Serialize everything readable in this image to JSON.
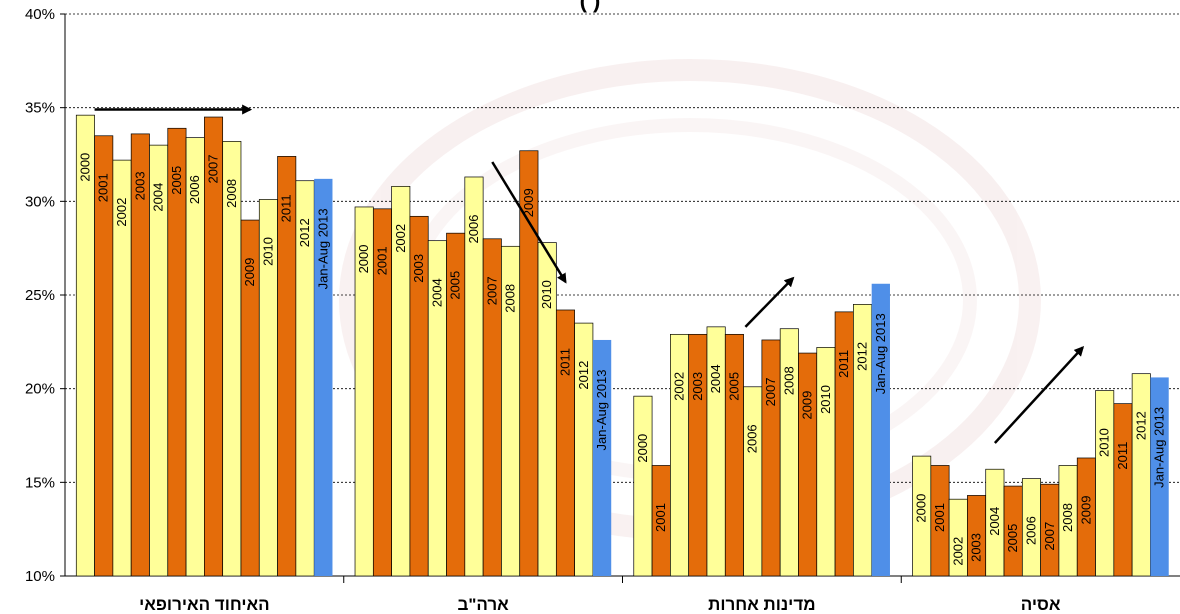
{
  "chart_data": {
    "type": "bar",
    "title": "(                    ‎)",
    "ylim": [
      10,
      40
    ],
    "yticks": [
      "10%",
      "15%",
      "20%",
      "25%",
      "30%",
      "35%",
      "40%"
    ],
    "ytick_values": [
      10,
      15,
      20,
      25,
      30,
      35,
      40
    ],
    "grid": true,
    "categories": [
      "האיחוד האירופאי",
      "ארה\"ב",
      "מדינות אחרות",
      "אסיה"
    ],
    "series_labels": [
      "2000",
      "2001",
      "2002",
      "2003",
      "2004",
      "2005",
      "2006",
      "2007",
      "2008",
      "2009",
      "2010",
      "2011",
      "2012",
      "Jan-Aug 2013"
    ],
    "colors": {
      "even_year": "#ffff99",
      "odd_year": "#e46c0a",
      "partial_year": "#4f8fe8",
      "bar_outline": "#000000",
      "grid": "#000000",
      "arrow": "#000000"
    },
    "values": [
      [
        34.6,
        33.5,
        32.2,
        33.6,
        33.0,
        33.9,
        33.4,
        34.5,
        33.2,
        29.0,
        30.1,
        32.4,
        31.1,
        31.2
      ],
      [
        29.7,
        29.6,
        30.8,
        29.2,
        27.9,
        28.3,
        31.3,
        28.0,
        27.6,
        32.7,
        27.8,
        24.2,
        23.5,
        22.6
      ],
      [
        19.6,
        15.9,
        22.9,
        22.9,
        23.3,
        22.9,
        20.1,
        22.6,
        23.2,
        21.9,
        22.2,
        24.1,
        24.5,
        25.6
      ],
      [
        16.4,
        15.9,
        14.1,
        14.3,
        15.7,
        14.8,
        15.2,
        14.9,
        15.9,
        16.3,
        19.9,
        19.2,
        20.8,
        20.6
      ]
    ],
    "trend_arrows": [
      {
        "group": 0,
        "from": [
          34.9,
          1
        ],
        "to": [
          34.9,
          9.5
        ]
      },
      {
        "group": 1,
        "from": [
          32.1,
          7.5
        ],
        "to": [
          25.7,
          11.5
        ]
      },
      {
        "group": 2,
        "from": [
          23.3,
          6.1
        ],
        "to": [
          25.9,
          8.7
        ]
      },
      {
        "group": 3,
        "from": [
          17.1,
          4.5
        ],
        "to": [
          22.2,
          9.3
        ]
      }
    ]
  }
}
